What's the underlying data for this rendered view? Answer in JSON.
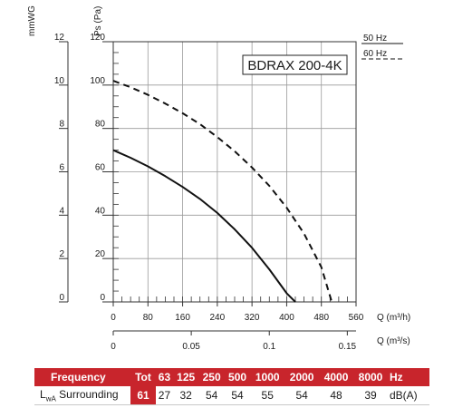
{
  "chart_data": {
    "type": "line",
    "title": "BDRAX 200-4K",
    "x_axis": {
      "label": "Q (m³/h)",
      "range": [
        0,
        560
      ],
      "ticks": [
        "0",
        "80",
        "160",
        "240",
        "320",
        "400",
        "480",
        "560"
      ]
    },
    "x2_axis": {
      "label": "Q (m³/s)",
      "range": [
        0,
        0.1556
      ],
      "ticks": [
        {
          "value": 0,
          "label": "0"
        },
        {
          "value": 0.05,
          "label": "0.05"
        },
        {
          "value": 0.1,
          "label": "0.1"
        },
        {
          "value": 0.15,
          "label": "0.15"
        }
      ]
    },
    "y_axis": {
      "label": "Ps (Pa)",
      "range": [
        0,
        120
      ],
      "ticks": [
        "0",
        "20",
        "40",
        "60",
        "80",
        "100",
        "120"
      ]
    },
    "y2_axis": {
      "label": "mmWG",
      "range": [
        0,
        12
      ],
      "ticks": [
        "0",
        "2",
        "4",
        "6",
        "8",
        "10",
        "12"
      ]
    },
    "grid": true,
    "legend_position": "top-right",
    "series": [
      {
        "name": "50 Hz",
        "style": "solid",
        "color": "#111111",
        "x": [
          0,
          40,
          80,
          120,
          160,
          200,
          240,
          280,
          320,
          360,
          400,
          420
        ],
        "y": [
          70,
          66.5,
          62.5,
          58,
          53,
          47.5,
          41,
          33.5,
          25,
          15,
          4,
          0
        ]
      },
      {
        "name": "60 Hz",
        "style": "dashed",
        "color": "#111111",
        "x": [
          0,
          40,
          80,
          120,
          160,
          200,
          240,
          280,
          320,
          360,
          400,
          440,
          480,
          504
        ],
        "y": [
          102,
          99,
          95.5,
          91.5,
          87,
          82,
          76,
          69.5,
          62,
          53.5,
          43.5,
          31.5,
          16,
          0
        ]
      }
    ]
  },
  "sound_table": {
    "header": {
      "frequency_label": "Frequency",
      "tot_label": "Tot",
      "bands": [
        "63",
        "125",
        "250",
        "500",
        "1000",
        "2000",
        "4000",
        "8000"
      ],
      "unit": "Hz"
    },
    "row": {
      "label_main": "L",
      "label_sub": "wA",
      "label_rest": "Surrounding",
      "tot": "61",
      "values": [
        "27",
        "32",
        "54",
        "54",
        "55",
        "54",
        "48",
        "39"
      ],
      "unit": "dB(A)"
    }
  },
  "colors": {
    "accent_red": "#c8252c",
    "curve": "#111111",
    "grid": "#9a9a9a"
  }
}
